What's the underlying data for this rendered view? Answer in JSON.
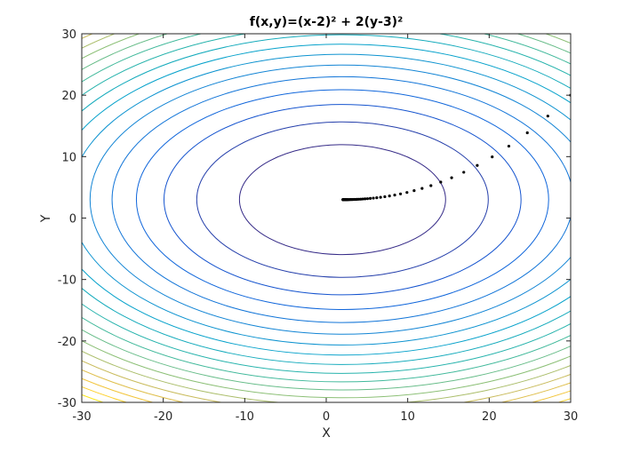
{
  "chart_data": {
    "type": "contour",
    "title": "f(x,y)=(x-2)² + 2(y-3)²",
    "xlabel": "X",
    "ylabel": "Y",
    "xlim": [
      -30,
      30
    ],
    "ylim": [
      -30,
      30
    ],
    "xticks": [
      -30,
      -20,
      -10,
      0,
      10,
      20,
      30
    ],
    "yticks": [
      -30,
      -20,
      -10,
      0,
      10,
      20,
      30
    ],
    "xtick_labels": [
      "-30",
      "-20",
      "-10",
      "0",
      "10",
      "20",
      "30"
    ],
    "ytick_labels": [
      "-30",
      "-20",
      "-10",
      "0",
      "10",
      "20",
      "30"
    ],
    "grid": false,
    "legend": null,
    "function": {
      "cx": 2,
      "cy": 3,
      "ax": 1,
      "ay": 2
    },
    "contour_levels": [
      160,
      320,
      480,
      640,
      800,
      960,
      1120,
      1280,
      1440,
      1600,
      1760,
      1920,
      2080,
      2240,
      2400,
      2560,
      2720,
      2880,
      3040,
      3200
    ],
    "colormap": "parula",
    "colormap_stops": [
      "#352a87",
      "#0f5cdd",
      "#1481d6",
      "#06a4ca",
      "#2eb7a4",
      "#87bf77",
      "#d1bb59",
      "#fec832",
      "#f9fb0e"
    ],
    "series": [
      {
        "name": "gradient descent path",
        "type": "scatter",
        "marker_color": "#000000",
        "x": [
          30,
          27.2,
          24.68,
          22.412,
          20.371,
          18.534,
          16.88,
          15.392,
          14.053,
          12.848,
          11.763,
          10.787,
          9.908,
          9.117,
          8.406,
          7.765,
          7.189,
          6.67,
          6.203,
          5.783,
          5.404,
          5.064,
          4.757,
          4.482,
          4.233,
          4.01,
          3.809,
          3.628,
          3.465,
          3.319,
          3.187,
          3.068,
          2.961,
          2.865,
          2.779,
          2.701,
          2.631,
          2.568,
          2.511,
          2.46,
          2.414,
          2.372,
          2.335,
          2.302,
          2.271,
          2.244,
          2.22,
          2.198,
          2.178,
          2.16,
          2.144,
          2.13,
          2.117,
          2.105,
          2.095,
          2.085,
          2.077,
          2.069,
          2.062,
          2.056,
          2.05
        ],
        "y": [
          20,
          16.6,
          13.88,
          11.704,
          9.963,
          8.571,
          7.457,
          6.565,
          5.852,
          5.282,
          4.825,
          4.46,
          4.168,
          3.934,
          3.748,
          3.598,
          3.478,
          3.383,
          3.306,
          3.245,
          3.196,
          3.157,
          3.126,
          3.1,
          3.08,
          3.064,
          3.051,
          3.041,
          3.033,
          3.026,
          3.021,
          3.017,
          3.013,
          3.011,
          3.009,
          3.007,
          3.005,
          3.004,
          3.003,
          3.003,
          3.002,
          3.002,
          3.001,
          3.001,
          3.001,
          3.001,
          3.001,
          3.0,
          3.0,
          3.0,
          3.0,
          3.0,
          3.0,
          3.0,
          3.0,
          3.0,
          3.0,
          3.0,
          3.0,
          3.0,
          3.0
        ]
      }
    ]
  }
}
